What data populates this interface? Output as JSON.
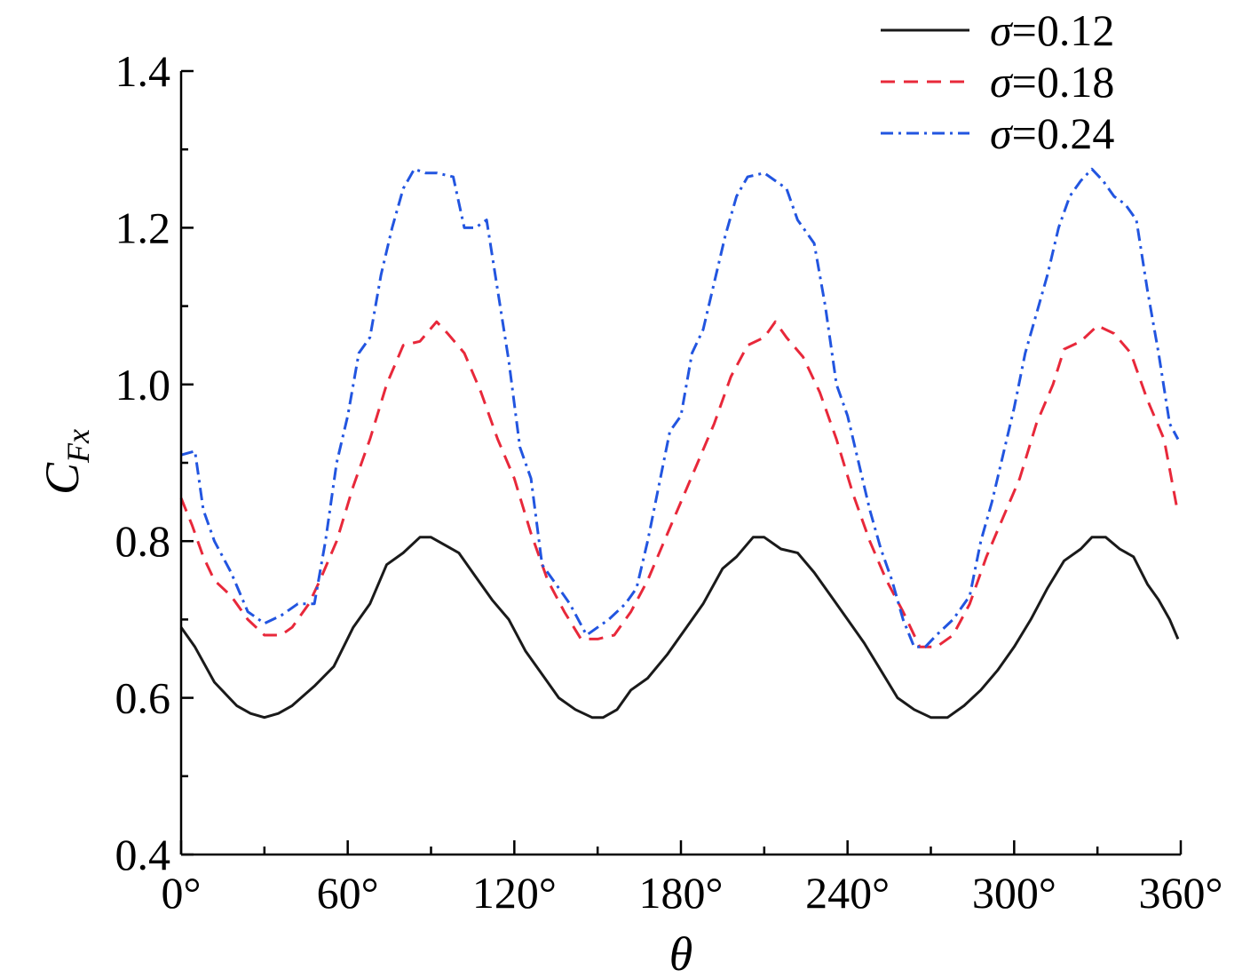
{
  "chart_data": {
    "type": "line",
    "xlabel": "θ",
    "ylabel": {
      "main": "C",
      "sub": "Fx"
    },
    "xlim": [
      0,
      360
    ],
    "ylim": [
      0.4,
      1.4
    ],
    "x_ticks": [
      0,
      60,
      120,
      180,
      240,
      300,
      360
    ],
    "x_tick_labels": [
      "0°",
      "60°",
      "120°",
      "180°",
      "240°",
      "300°",
      "360°"
    ],
    "y_ticks": [
      0.4,
      0.6,
      0.8,
      1.0,
      1.2,
      1.4
    ],
    "y_tick_labels": [
      "0.4",
      "0.6",
      "0.8",
      "1.0",
      "1.2",
      "1.4"
    ],
    "grid": false,
    "legend_position": "top-right",
    "series": [
      {
        "name": "σ=0.12",
        "color": "#1a1a1a",
        "dash": "solid",
        "points": [
          [
            0,
            0.69
          ],
          [
            5,
            0.665
          ],
          [
            12,
            0.62
          ],
          [
            20,
            0.59
          ],
          [
            25,
            0.58
          ],
          [
            30,
            0.575
          ],
          [
            35,
            0.58
          ],
          [
            40,
            0.59
          ],
          [
            48,
            0.615
          ],
          [
            55,
            0.64
          ],
          [
            62,
            0.69
          ],
          [
            68,
            0.72
          ],
          [
            74,
            0.77
          ],
          [
            80,
            0.785
          ],
          [
            86,
            0.805
          ],
          [
            90,
            0.805
          ],
          [
            95,
            0.795
          ],
          [
            100,
            0.785
          ],
          [
            106,
            0.755
          ],
          [
            112,
            0.725
          ],
          [
            118,
            0.7
          ],
          [
            124,
            0.66
          ],
          [
            130,
            0.63
          ],
          [
            136,
            0.6
          ],
          [
            142,
            0.585
          ],
          [
            148,
            0.575
          ],
          [
            152,
            0.575
          ],
          [
            157,
            0.585
          ],
          [
            162,
            0.61
          ],
          [
            168,
            0.625
          ],
          [
            175,
            0.655
          ],
          [
            182,
            0.69
          ],
          [
            188,
            0.72
          ],
          [
            195,
            0.765
          ],
          [
            200,
            0.78
          ],
          [
            206,
            0.805
          ],
          [
            210,
            0.805
          ],
          [
            216,
            0.79
          ],
          [
            222,
            0.785
          ],
          [
            228,
            0.76
          ],
          [
            234,
            0.73
          ],
          [
            240,
            0.7
          ],
          [
            246,
            0.67
          ],
          [
            252,
            0.635
          ],
          [
            258,
            0.6
          ],
          [
            264,
            0.585
          ],
          [
            270,
            0.575
          ],
          [
            276,
            0.575
          ],
          [
            282,
            0.59
          ],
          [
            288,
            0.61
          ],
          [
            294,
            0.635
          ],
          [
            300,
            0.665
          ],
          [
            306,
            0.7
          ],
          [
            312,
            0.74
          ],
          [
            318,
            0.775
          ],
          [
            324,
            0.79
          ],
          [
            328,
            0.805
          ],
          [
            333,
            0.805
          ],
          [
            338,
            0.79
          ],
          [
            343,
            0.78
          ],
          [
            348,
            0.745
          ],
          [
            352,
            0.725
          ],
          [
            356,
            0.7
          ],
          [
            359,
            0.675
          ]
        ]
      },
      {
        "name": "σ=0.18",
        "color": "#e8283a",
        "dash": "dashed",
        "points": [
          [
            0,
            0.855
          ],
          [
            4,
            0.82
          ],
          [
            8,
            0.78
          ],
          [
            12,
            0.75
          ],
          [
            18,
            0.73
          ],
          [
            24,
            0.7
          ],
          [
            30,
            0.68
          ],
          [
            36,
            0.68
          ],
          [
            40,
            0.69
          ],
          [
            46,
            0.72
          ],
          [
            50,
            0.75
          ],
          [
            56,
            0.8
          ],
          [
            62,
            0.87
          ],
          [
            68,
            0.93
          ],
          [
            74,
            1.0
          ],
          [
            80,
            1.05
          ],
          [
            86,
            1.055
          ],
          [
            92,
            1.08
          ],
          [
            96,
            1.065
          ],
          [
            102,
            1.04
          ],
          [
            108,
            0.99
          ],
          [
            114,
            0.93
          ],
          [
            120,
            0.88
          ],
          [
            126,
            0.81
          ],
          [
            132,
            0.75
          ],
          [
            138,
            0.71
          ],
          [
            144,
            0.675
          ],
          [
            150,
            0.675
          ],
          [
            156,
            0.68
          ],
          [
            162,
            0.71
          ],
          [
            168,
            0.75
          ],
          [
            174,
            0.8
          ],
          [
            180,
            0.85
          ],
          [
            186,
            0.9
          ],
          [
            192,
            0.95
          ],
          [
            198,
            1.01
          ],
          [
            204,
            1.05
          ],
          [
            210,
            1.06
          ],
          [
            214,
            1.08
          ],
          [
            218,
            1.06
          ],
          [
            224,
            1.035
          ],
          [
            230,
            0.99
          ],
          [
            236,
            0.93
          ],
          [
            242,
            0.86
          ],
          [
            248,
            0.8
          ],
          [
            254,
            0.75
          ],
          [
            260,
            0.71
          ],
          [
            266,
            0.665
          ],
          [
            272,
            0.665
          ],
          [
            278,
            0.68
          ],
          [
            284,
            0.72
          ],
          [
            290,
            0.78
          ],
          [
            296,
            0.83
          ],
          [
            302,
            0.88
          ],
          [
            308,
            0.95
          ],
          [
            314,
            1.0
          ],
          [
            318,
            1.045
          ],
          [
            324,
            1.055
          ],
          [
            330,
            1.075
          ],
          [
            336,
            1.065
          ],
          [
            342,
            1.04
          ],
          [
            348,
            0.98
          ],
          [
            354,
            0.93
          ],
          [
            359,
            0.835
          ]
        ]
      },
      {
        "name": "σ=0.24",
        "color": "#2255e0",
        "dash": "dash-dot",
        "points": [
          [
            0,
            0.91
          ],
          [
            5,
            0.915
          ],
          [
            8,
            0.84
          ],
          [
            12,
            0.8
          ],
          [
            18,
            0.76
          ],
          [
            24,
            0.71
          ],
          [
            30,
            0.695
          ],
          [
            36,
            0.705
          ],
          [
            42,
            0.72
          ],
          [
            48,
            0.72
          ],
          [
            52,
            0.8
          ],
          [
            56,
            0.9
          ],
          [
            60,
            0.96
          ],
          [
            64,
            1.04
          ],
          [
            68,
            1.06
          ],
          [
            72,
            1.14
          ],
          [
            76,
            1.2
          ],
          [
            80,
            1.25
          ],
          [
            84,
            1.275
          ],
          [
            88,
            1.27
          ],
          [
            92,
            1.27
          ],
          [
            98,
            1.265
          ],
          [
            102,
            1.2
          ],
          [
            106,
            1.2
          ],
          [
            110,
            1.21
          ],
          [
            114,
            1.12
          ],
          [
            118,
            1.03
          ],
          [
            122,
            0.92
          ],
          [
            126,
            0.88
          ],
          [
            130,
            0.77
          ],
          [
            136,
            0.74
          ],
          [
            140,
            0.72
          ],
          [
            146,
            0.68
          ],
          [
            150,
            0.69
          ],
          [
            154,
            0.7
          ],
          [
            160,
            0.72
          ],
          [
            164,
            0.74
          ],
          [
            168,
            0.8
          ],
          [
            172,
            0.87
          ],
          [
            176,
            0.94
          ],
          [
            180,
            0.96
          ],
          [
            184,
            1.04
          ],
          [
            188,
            1.07
          ],
          [
            192,
            1.13
          ],
          [
            196,
            1.19
          ],
          [
            200,
            1.24
          ],
          [
            204,
            1.265
          ],
          [
            210,
            1.27
          ],
          [
            214,
            1.26
          ],
          [
            218,
            1.25
          ],
          [
            222,
            1.21
          ],
          [
            228,
            1.18
          ],
          [
            232,
            1.1
          ],
          [
            236,
            1.0
          ],
          [
            240,
            0.96
          ],
          [
            244,
            0.9
          ],
          [
            248,
            0.84
          ],
          [
            252,
            0.79
          ],
          [
            256,
            0.75
          ],
          [
            260,
            0.7
          ],
          [
            264,
            0.665
          ],
          [
            268,
            0.665
          ],
          [
            272,
            0.68
          ],
          [
            278,
            0.7
          ],
          [
            284,
            0.73
          ],
          [
            288,
            0.8
          ],
          [
            292,
            0.85
          ],
          [
            296,
            0.91
          ],
          [
            300,
            0.97
          ],
          [
            304,
            1.04
          ],
          [
            308,
            1.09
          ],
          [
            312,
            1.14
          ],
          [
            316,
            1.2
          ],
          [
            320,
            1.24
          ],
          [
            324,
            1.26
          ],
          [
            328,
            1.275
          ],
          [
            332,
            1.26
          ],
          [
            336,
            1.24
          ],
          [
            340,
            1.23
          ],
          [
            344,
            1.21
          ],
          [
            348,
            1.12
          ],
          [
            352,
            1.04
          ],
          [
            356,
            0.95
          ],
          [
            359,
            0.93
          ]
        ]
      }
    ]
  }
}
